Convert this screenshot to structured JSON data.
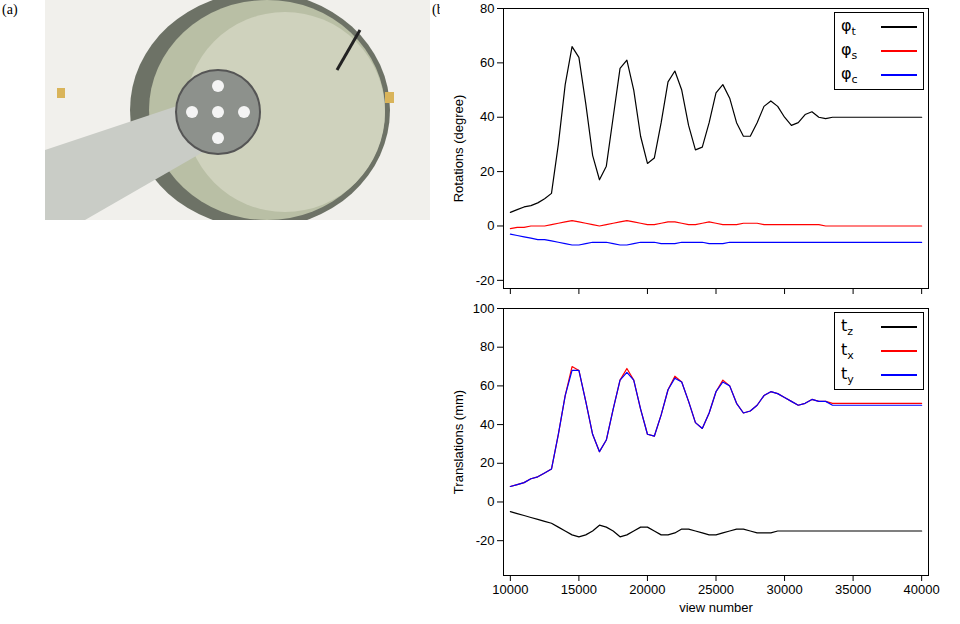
{
  "panel_labels": [
    "(a)",
    "(b)"
  ],
  "chart_data": [
    {
      "type": "line",
      "y_label": "Rotations (degree)",
      "x": [
        10000,
        10500,
        11000,
        11500,
        12000,
        12500,
        13000,
        13500,
        14000,
        14500,
        15000,
        15500,
        16000,
        16500,
        17000,
        17500,
        18000,
        18500,
        19000,
        19500,
        20000,
        20500,
        21000,
        21500,
        22000,
        22500,
        23000,
        23500,
        24000,
        24500,
        25000,
        25500,
        26000,
        26500,
        27000,
        27500,
        28000,
        28500,
        29000,
        29500,
        30000,
        30500,
        31000,
        31500,
        32000,
        32500,
        33000,
        33500,
        34000,
        34500,
        35000,
        35500,
        36000,
        36500,
        37000,
        37500,
        38000,
        38500,
        39000,
        39500,
        40000
      ],
      "series": [
        {
          "name": "φt",
          "color": "#000000",
          "values": [
            5,
            6,
            7,
            7.5,
            8.5,
            10,
            12,
            30,
            52,
            66,
            62,
            45,
            26,
            17,
            22,
            40,
            58,
            61,
            50,
            33,
            23,
            25,
            38,
            53,
            57,
            50,
            37,
            28,
            29,
            38,
            49,
            52,
            47,
            38,
            33,
            33,
            38,
            44,
            46,
            44,
            40,
            37,
            38,
            41,
            42,
            40,
            39.5,
            40,
            40,
            40,
            40,
            40,
            40,
            40,
            40,
            40,
            40,
            40,
            40,
            40,
            40
          ]
        },
        {
          "name": "φs",
          "color": "#ff0000",
          "values": [
            -1,
            -0.5,
            -0.5,
            0,
            0,
            0,
            0.5,
            1,
            1.5,
            2,
            1.5,
            1,
            0.5,
            0,
            0.5,
            1,
            1.5,
            2,
            1.5,
            1,
            0.5,
            0.5,
            1,
            1.5,
            1.5,
            1,
            0.5,
            0.5,
            1,
            1.5,
            1,
            0.5,
            0.5,
            0.5,
            1,
            1,
            1,
            0.5,
            0.5,
            0.5,
            0.5,
            0.5,
            0.5,
            0.5,
            0.5,
            0.5,
            0,
            0,
            0,
            0,
            0,
            0,
            0,
            0,
            0,
            0,
            0,
            0,
            0,
            0,
            0
          ]
        },
        {
          "name": "φc",
          "color": "#0000ff",
          "values": [
            -3,
            -3.5,
            -4,
            -4.5,
            -5,
            -5,
            -5.5,
            -6,
            -6.5,
            -7,
            -7,
            -6.5,
            -6,
            -6,
            -6,
            -6.5,
            -7,
            -7,
            -6.5,
            -6,
            -6,
            -6,
            -6.5,
            -6.5,
            -6.5,
            -6,
            -6,
            -6,
            -6,
            -6.5,
            -6.5,
            -6.5,
            -6,
            -6,
            -6,
            -6,
            -6,
            -6,
            -6,
            -6,
            -6,
            -6,
            -6,
            -6,
            -6,
            -6,
            -6,
            -6,
            -6,
            -6,
            -6,
            -6,
            -6,
            -6,
            -6,
            -6,
            -6,
            -6,
            -6,
            -6,
            -6
          ]
        }
      ],
      "xlim": [
        9500,
        40500
      ],
      "xticks": [
        10000,
        15000,
        20000,
        25000,
        30000,
        35000,
        40000
      ],
      "ylim": [
        -23,
        80
      ],
      "yticks": [
        -20,
        0,
        20,
        40,
        60,
        80
      ],
      "tick_labels": "y",
      "legend": "top-right"
    },
    {
      "type": "line",
      "y_label": "Translations (mm)",
      "x_label": "view number",
      "x": [
        10000,
        10500,
        11000,
        11500,
        12000,
        12500,
        13000,
        13500,
        14000,
        14500,
        15000,
        15500,
        16000,
        16500,
        17000,
        17500,
        18000,
        18500,
        19000,
        19500,
        20000,
        20500,
        21000,
        21500,
        22000,
        22500,
        23000,
        23500,
        24000,
        24500,
        25000,
        25500,
        26000,
        26500,
        27000,
        27500,
        28000,
        28500,
        29000,
        29500,
        30000,
        30500,
        31000,
        31500,
        32000,
        32500,
        33000,
        33500,
        34000,
        34500,
        35000,
        35500,
        36000,
        36500,
        37000,
        37500,
        38000,
        38500,
        39000,
        39500,
        40000
      ],
      "series": [
        {
          "name": "tz",
          "color": "#000000",
          "values": [
            -5,
            -6,
            -7,
            -8,
            -9,
            -10,
            -11,
            -13,
            -15,
            -17,
            -18,
            -17,
            -15,
            -12,
            -13,
            -15,
            -18,
            -17,
            -15,
            -13,
            -13,
            -15,
            -17,
            -17,
            -16,
            -14,
            -14,
            -15,
            -16,
            -17,
            -17,
            -16,
            -15,
            -14,
            -14,
            -15,
            -16,
            -16,
            -16,
            -15,
            -15,
            -15,
            -15,
            -15,
            -15,
            -15,
            -15,
            -15,
            -15,
            -15,
            -15,
            -15,
            -15,
            -15,
            -15,
            -15,
            -15,
            -15,
            -15,
            -15,
            -15
          ]
        },
        {
          "name": "tx",
          "color": "#ff0000",
          "values": [
            8,
            9,
            10,
            12,
            13,
            15,
            17,
            35,
            55,
            70,
            68,
            52,
            35,
            26,
            32,
            48,
            63,
            69,
            63,
            48,
            35,
            34,
            45,
            58,
            65,
            62,
            52,
            41,
            38,
            46,
            57,
            63,
            60,
            51,
            46,
            47,
            50,
            55,
            57,
            56,
            54,
            52,
            50,
            51,
            53,
            52,
            52,
            51,
            51,
            51,
            51,
            51,
            51,
            51,
            51,
            51,
            51,
            51,
            51,
            51,
            51
          ]
        },
        {
          "name": "ty",
          "color": "#0000ff",
          "values": [
            8,
            9,
            10,
            12,
            13,
            15,
            17,
            35,
            55,
            68,
            68,
            52,
            35,
            26,
            32,
            48,
            63,
            67,
            63,
            48,
            35,
            34,
            45,
            58,
            64,
            62,
            52,
            41,
            38,
            46,
            57,
            62,
            60,
            51,
            46,
            47,
            50,
            55,
            57,
            56,
            54,
            52,
            50,
            51,
            53,
            52,
            52,
            50,
            50,
            50,
            50,
            50,
            50,
            50,
            50,
            50,
            50,
            50,
            50,
            50,
            50
          ]
        }
      ],
      "xlim": [
        9500,
        40500
      ],
      "xticks": [
        10000,
        15000,
        20000,
        25000,
        30000,
        35000,
        40000
      ],
      "ylim": [
        -38,
        100
      ],
      "yticks": [
        -20,
        0,
        20,
        40,
        60,
        80,
        100
      ],
      "legend": "top-right"
    }
  ]
}
